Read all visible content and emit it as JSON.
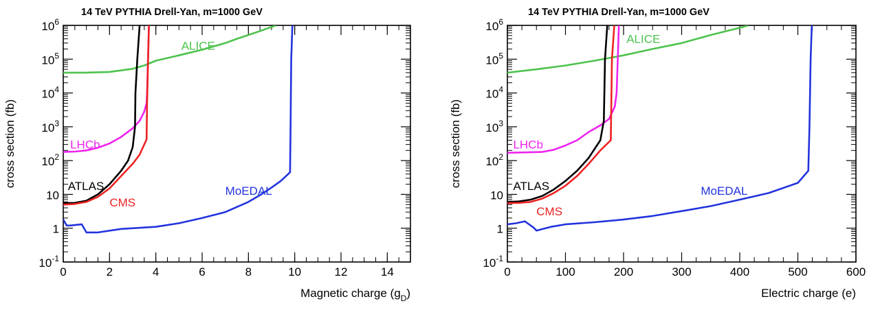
{
  "colors": {
    "ALICE": "#4cc24c",
    "LHCb": "#ee22ee",
    "ATLAS": "#000000",
    "CMS": "#ee2222",
    "MoEDAL": "#2233dd"
  },
  "chart_data": [
    {
      "type": "line",
      "title": "14 TeV PYTHIA Drell-Yan, m=1000 GeV",
      "xlabel": "Magnetic charge (g",
      "xlabel_sub": "D",
      "xlabel_close": ")",
      "ylabel": "cross section (fb)",
      "xlim": [
        0,
        15
      ],
      "ylim": [
        0.1,
        1000000
      ],
      "yscale": "log",
      "xticks": [
        0,
        2,
        4,
        6,
        8,
        10,
        12,
        14
      ],
      "xtick_labels": [
        "0",
        "2",
        "4",
        "6",
        "8",
        "10",
        "12",
        "14"
      ],
      "ytick_labels": [
        {
          "v": 1000000,
          "base": "10",
          "exp": "6"
        },
        {
          "v": 100000,
          "base": "10",
          "exp": "5"
        },
        {
          "v": 10000,
          "base": "10",
          "exp": "4"
        },
        {
          "v": 1000,
          "base": "10",
          "exp": "3"
        },
        {
          "v": 100,
          "base": "10",
          "exp": "2"
        },
        {
          "v": 10,
          "base": "10",
          "exp": ""
        },
        {
          "v": 1,
          "base": "1",
          "exp": ""
        },
        {
          "v": 0.1,
          "base": "10",
          "exp": "-1"
        }
      ],
      "series": [
        {
          "name": "ALICE",
          "x": [
            0,
            1,
            2,
            3,
            3.5,
            4,
            5,
            6,
            7,
            7.5,
            8,
            8.5,
            9,
            9.2
          ],
          "y": [
            40000,
            40000,
            42000,
            52000,
            65000,
            90000,
            130000,
            190000,
            300000,
            400000,
            520000,
            680000,
            900000,
            1000000
          ]
        },
        {
          "name": "LHCb",
          "x": [
            0,
            0.5,
            1,
            1.5,
            2,
            2.5,
            3,
            3.3,
            3.5,
            3.6,
            3.62,
            3.7
          ],
          "y": [
            180,
            185,
            200,
            240,
            320,
            500,
            900,
            1500,
            2800,
            5000,
            10000,
            1000000
          ]
        },
        {
          "name": "ATLAS",
          "x": [
            0,
            0.5,
            1,
            1.5,
            2,
            2.5,
            2.8,
            3.0,
            3.1,
            3.12,
            3.2,
            3.3
          ],
          "y": [
            5.5,
            5.6,
            6.5,
            10,
            20,
            50,
            100,
            250,
            1000,
            10000,
            100000,
            1000000
          ]
        },
        {
          "name": "CMS",
          "x": [
            0,
            0.5,
            1,
            1.5,
            2,
            2.5,
            3,
            3.3,
            3.5,
            3.6,
            3.62,
            3.7
          ],
          "y": [
            5,
            5.2,
            6,
            8.5,
            15,
            35,
            80,
            150,
            300,
            420,
            5000,
            1000000
          ]
        },
        {
          "name": "MoEDAL",
          "x": [
            0,
            0.15,
            0.3,
            0.8,
            1.0,
            1.5,
            2.5,
            4,
            5,
            6,
            7,
            8,
            8.5,
            9,
            9.4,
            9.8,
            9.82,
            9.85,
            9.9
          ],
          "y": [
            1.8,
            1.2,
            1.2,
            1.3,
            0.75,
            0.75,
            0.95,
            1.1,
            1.4,
            2.0,
            3.0,
            6.0,
            9.5,
            16,
            25,
            45,
            800,
            100000,
            1000000
          ]
        }
      ],
      "labels": [
        {
          "text": "ALICE",
          "series": "ALICE",
          "x": 5.1,
          "y": 250000
        },
        {
          "text": "LHCb",
          "series": "LHCb",
          "x": 0.3,
          "y": 300
        },
        {
          "text": "ATLAS",
          "series": "ATLAS",
          "x": 0.2,
          "y": 18
        },
        {
          "text": "CMS",
          "series": "CMS",
          "x": 2.0,
          "y": 5.8
        },
        {
          "text": "MoEDAL",
          "series": "MoEDAL",
          "x": 7.0,
          "y": 13
        }
      ]
    },
    {
      "type": "line",
      "title": "14 TeV PYTHIA Drell-Yan, m=1000 GeV",
      "xlabel": "Electric charge (e)",
      "xlabel_sub": "",
      "xlabel_close": "",
      "ylabel": "cross section (fb)",
      "xlim": [
        0,
        600
      ],
      "ylim": [
        0.1,
        1000000
      ],
      "yscale": "log",
      "xticks": [
        0,
        100,
        200,
        300,
        400,
        500,
        600
      ],
      "xtick_labels": [
        "0",
        "100",
        "200",
        "300",
        "400",
        "500",
        "600"
      ],
      "ytick_labels": [
        {
          "v": 1000000,
          "base": "10",
          "exp": "6"
        },
        {
          "v": 100000,
          "base": "10",
          "exp": "5"
        },
        {
          "v": 10000,
          "base": "10",
          "exp": "4"
        },
        {
          "v": 1000,
          "base": "10",
          "exp": "3"
        },
        {
          "v": 100,
          "base": "10",
          "exp": "2"
        },
        {
          "v": 10,
          "base": "10",
          "exp": ""
        },
        {
          "v": 1,
          "base": "1",
          "exp": ""
        },
        {
          "v": 0.1,
          "base": "10",
          "exp": "-1"
        }
      ],
      "series": [
        {
          "name": "ALICE",
          "x": [
            0,
            50,
            100,
            150,
            200,
            250,
            300,
            350,
            400,
            415
          ],
          "y": [
            40000,
            50000,
            65000,
            90000,
            130000,
            200000,
            300000,
            520000,
            850000,
            1000000
          ]
        },
        {
          "name": "LHCb",
          "x": [
            0,
            30,
            60,
            80,
            100,
            120,
            140,
            160,
            175,
            185,
            188,
            192
          ],
          "y": [
            170,
            175,
            180,
            210,
            280,
            400,
            700,
            1100,
            1700,
            4000,
            10000,
            1000000
          ]
        },
        {
          "name": "ATLAS",
          "x": [
            0,
            20,
            40,
            60,
            80,
            100,
            120,
            140,
            160,
            166,
            168,
            172
          ],
          "y": [
            6,
            6.2,
            7,
            9,
            14,
            25,
            50,
            120,
            400,
            1500,
            100000,
            1000000
          ]
        },
        {
          "name": "CMS",
          "x": [
            0,
            20,
            40,
            60,
            80,
            100,
            120,
            140,
            160,
            178,
            180,
            184
          ],
          "y": [
            5.5,
            5.6,
            6,
            7.5,
            11,
            18,
            35,
            80,
            200,
            400,
            100000,
            1000000
          ]
        },
        {
          "name": "MoEDAL",
          "x": [
            0,
            15,
            30,
            45,
            50,
            75,
            100,
            150,
            200,
            250,
            300,
            350,
            400,
            450,
            500,
            518,
            520,
            522,
            524
          ],
          "y": [
            1.3,
            1.4,
            1.6,
            1.05,
            0.85,
            1.1,
            1.3,
            1.5,
            1.8,
            2.3,
            3.2,
            4.5,
            7,
            11,
            22,
            50,
            1000,
            100000,
            1000000
          ]
        }
      ],
      "labels": [
        {
          "text": "ALICE",
          "series": "ALICE",
          "x": 205,
          "y": 400000
        },
        {
          "text": "LHCb",
          "series": "LHCb",
          "x": 10,
          "y": 300
        },
        {
          "text": "ATLAS",
          "series": "ATLAS",
          "x": 10,
          "y": 18
        },
        {
          "text": "CMS",
          "series": "CMS",
          "x": 50,
          "y": 3.2
        },
        {
          "text": "MoEDAL",
          "series": "MoEDAL",
          "x": 333,
          "y": 13
        }
      ]
    }
  ]
}
